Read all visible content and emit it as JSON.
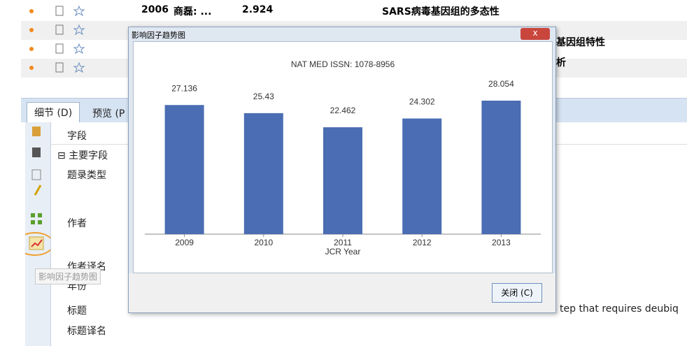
{
  "list": {
    "rows": [
      [
        "2006",
        "商磊: ...",
        "2.924",
        "SARS病毒基因组的多态性"
      ],
      [
        "基因组特性"
      ],
      [
        "析"
      ]
    ]
  },
  "tabs": [
    "细节 (D)",
    "预览 (P"
  ],
  "fields": {
    "header": "字段",
    "group": "主要字段",
    "items": [
      "题录类型",
      "作者",
      "作者译名",
      "年份",
      "标题",
      "标题译名"
    ]
  },
  "tooltip": "影响因子趋势图",
  "title_fragment": "tep that requires deubiq",
  "dialog": {
    "title": "影响因子趋势图",
    "close_button": "关闭 (C)",
    "chart_data": {
      "type": "bar",
      "title": "NAT MED   ISSN: 1078-8956",
      "x_label": "JCR Year",
      "categories": [
        "2009",
        "2010",
        "2011",
        "2012",
        "2013"
      ],
      "values": [
        27.136,
        25.43,
        22.462,
        24.302,
        28.054
      ],
      "color": "#4a6db3"
    }
  }
}
